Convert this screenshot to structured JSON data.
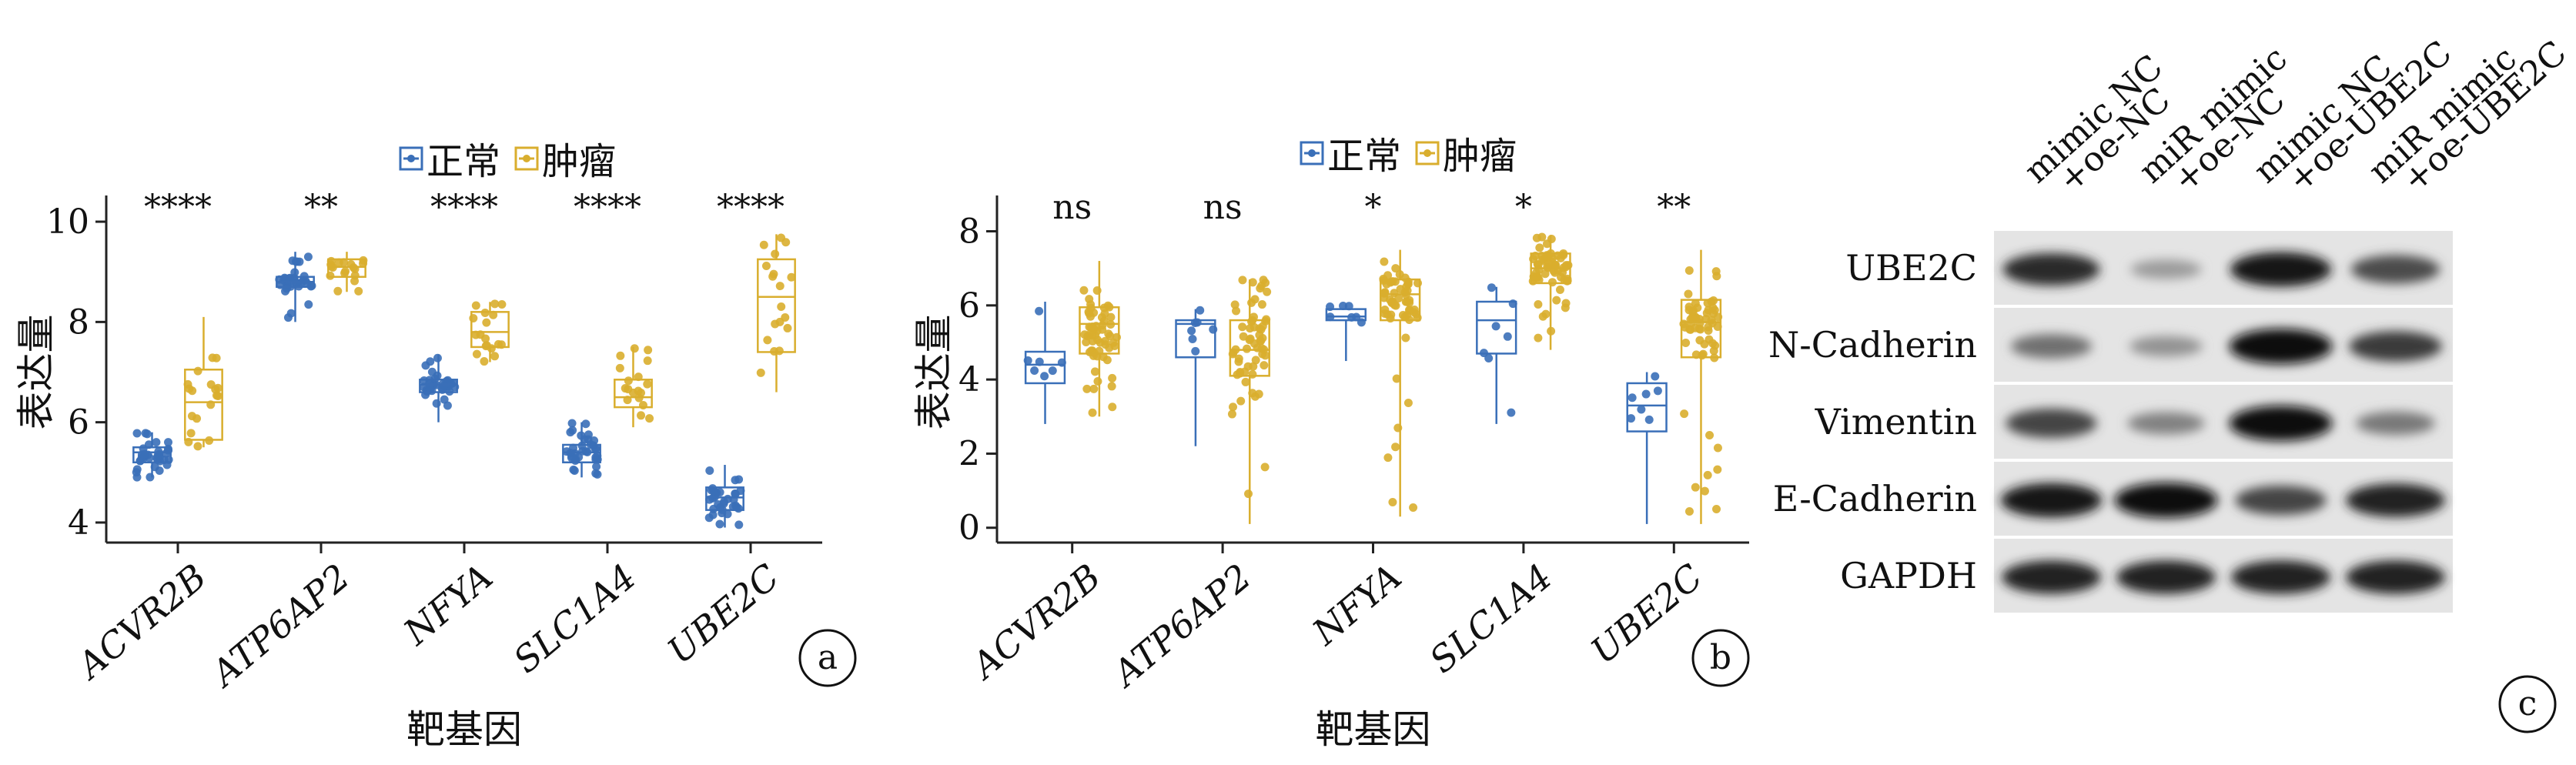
{
  "colors": {
    "normal": "#3a6fb8",
    "tumor": "#d9ae2e",
    "axis": "#222222"
  },
  "chart_data": [
    {
      "panel": "a",
      "type": "box",
      "categories": [
        "ACVR2B",
        "ATP6AP2",
        "NFYA",
        "SLC1A4",
        "UBE2C"
      ],
      "ylabel": "表达量",
      "xlabel": "靶基因",
      "ylim": [
        3.6,
        10.4
      ],
      "yticks": [
        4,
        6,
        8,
        10
      ],
      "legend": [
        "正常",
        "肿瘤"
      ],
      "legend_position": "top",
      "significance": [
        "****",
        "**",
        "****",
        "****",
        "****"
      ],
      "series": [
        {
          "name": "正常",
          "boxes": [
            {
              "whislo": 4.9,
              "q1": 5.2,
              "med": 5.4,
              "q3": 5.5,
              "whishi": 5.8
            },
            {
              "whislo": 8.0,
              "q1": 8.7,
              "med": 8.8,
              "q3": 8.9,
              "whishi": 9.4
            },
            {
              "whislo": 6.0,
              "q1": 6.6,
              "med": 6.75,
              "q3": 6.85,
              "whishi": 7.35
            },
            {
              "whislo": 4.9,
              "q1": 5.2,
              "med": 5.4,
              "q3": 5.55,
              "whishi": 6.0
            },
            {
              "whislo": 3.9,
              "q1": 4.25,
              "med": 4.5,
              "q3": 4.7,
              "whishi": 5.15
            }
          ]
        },
        {
          "name": "肿瘤",
          "boxes": [
            {
              "whislo": 5.5,
              "q1": 5.65,
              "med": 6.4,
              "q3": 7.05,
              "whishi": 8.1
            },
            {
              "whislo": 8.6,
              "q1": 8.9,
              "med": 9.1,
              "q3": 9.25,
              "whishi": 9.4
            },
            {
              "whislo": 7.2,
              "q1": 7.5,
              "med": 7.8,
              "q3": 8.2,
              "whishi": 8.4
            },
            {
              "whislo": 5.9,
              "q1": 6.3,
              "med": 6.5,
              "q3": 6.85,
              "whishi": 7.5
            },
            {
              "whislo": 6.6,
              "q1": 7.4,
              "med": 8.5,
              "q3": 9.25,
              "whishi": 9.75
            }
          ]
        }
      ]
    },
    {
      "panel": "b",
      "type": "box",
      "categories": [
        "ACVR2B",
        "ATP6AP2",
        "NFYA",
        "SLC1A4",
        "UBE2C"
      ],
      "ylabel": "表达量",
      "xlabel": "靶基因",
      "ylim": [
        -0.4,
        8.8
      ],
      "yticks": [
        0,
        2,
        4,
        6,
        8
      ],
      "legend": [
        "正常",
        "肿瘤"
      ],
      "legend_position": "top",
      "significance": [
        "ns",
        "ns",
        "*",
        "*",
        "**"
      ],
      "series": [
        {
          "name": "正常",
          "boxes": [
            {
              "whislo": 2.8,
              "q1": 3.9,
              "med": 4.4,
              "q3": 4.75,
              "whishi": 6.1
            },
            {
              "whislo": 2.2,
              "q1": 4.6,
              "med": 5.5,
              "q3": 5.6,
              "whishi": 5.9
            },
            {
              "whislo": 4.5,
              "q1": 5.6,
              "med": 5.7,
              "q3": 5.9,
              "whishi": 6.0
            },
            {
              "whislo": 2.8,
              "q1": 4.7,
              "med": 5.6,
              "q3": 6.1,
              "whishi": 6.5
            },
            {
              "whislo": 0.1,
              "q1": 2.6,
              "med": 3.3,
              "q3": 3.9,
              "whishi": 4.2
            }
          ]
        },
        {
          "name": "肿瘤",
          "boxes": [
            {
              "whislo": 3.0,
              "q1": 4.7,
              "med": 5.5,
              "q3": 5.95,
              "whishi": 7.2
            },
            {
              "whislo": 0.1,
              "q1": 4.1,
              "med": 4.8,
              "q3": 5.6,
              "whishi": 6.7
            },
            {
              "whislo": 0.3,
              "q1": 5.6,
              "med": 6.3,
              "q3": 6.7,
              "whishi": 7.5
            },
            {
              "whislo": 4.8,
              "q1": 6.6,
              "med": 7.0,
              "q3": 7.4,
              "whishi": 7.9
            },
            {
              "whislo": 0.1,
              "q1": 4.6,
              "med": 5.55,
              "q3": 6.15,
              "whishi": 7.5
            }
          ]
        }
      ]
    }
  ],
  "panels": {
    "a": "a",
    "b": "b",
    "c": "c"
  },
  "blot": {
    "columns": [
      "mimic NC\n+oe-NC",
      "miR mimic\n+oe-NC",
      "mimic NC\n+oe-UBE2C",
      "miR mimic\n+oe-UBE2C"
    ],
    "rows": [
      {
        "label": "UBE2C",
        "intensities": [
          0.85,
          0.2,
          0.95,
          0.65
        ]
      },
      {
        "label": "N-Cadherin",
        "intensities": [
          0.45,
          0.25,
          1.0,
          0.75
        ]
      },
      {
        "label": "Vimentin",
        "intensities": [
          0.7,
          0.35,
          1.0,
          0.4
        ]
      },
      {
        "label": "E-Cadherin",
        "intensities": [
          0.95,
          1.0,
          0.7,
          0.9
        ]
      },
      {
        "label": "GAPDH",
        "intensities": [
          0.9,
          0.9,
          0.9,
          0.9
        ]
      }
    ]
  }
}
